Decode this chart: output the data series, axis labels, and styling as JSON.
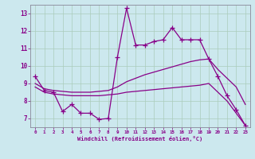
{
  "xlabel": "Windchill (Refroidissement éolien,°C)",
  "bg_color": "#cce8ee",
  "grid_color": "#aaccbb",
  "line_color": "#880088",
  "xlim": [
    -0.5,
    23.5
  ],
  "ylim": [
    6.5,
    13.5
  ],
  "yticks": [
    7,
    8,
    9,
    10,
    11,
    12,
    13
  ],
  "xticks": [
    0,
    1,
    2,
    3,
    4,
    5,
    6,
    7,
    8,
    9,
    10,
    11,
    12,
    13,
    14,
    15,
    16,
    17,
    18,
    19,
    20,
    21,
    22,
    23
  ],
  "line1_x": [
    0,
    1,
    2,
    3,
    4,
    5,
    6,
    7,
    8,
    9,
    10,
    11,
    12,
    13,
    14,
    15,
    16,
    17,
    18,
    19,
    20,
    21,
    22,
    23
  ],
  "line1_y": [
    9.4,
    8.6,
    8.5,
    7.4,
    7.8,
    7.3,
    7.3,
    6.95,
    7.0,
    10.5,
    13.3,
    11.2,
    11.2,
    11.4,
    11.5,
    12.2,
    11.5,
    11.5,
    11.5,
    10.4,
    9.4,
    8.3,
    7.5,
    6.6
  ],
  "line2_x": [
    0,
    1,
    2,
    3,
    4,
    5,
    6,
    7,
    8,
    9,
    10,
    11,
    12,
    13,
    14,
    15,
    16,
    17,
    18,
    19,
    20,
    21,
    22,
    23
  ],
  "line2_y": [
    9.0,
    8.7,
    8.6,
    8.55,
    8.5,
    8.5,
    8.5,
    8.55,
    8.6,
    8.8,
    9.1,
    9.3,
    9.5,
    9.65,
    9.8,
    9.95,
    10.1,
    10.25,
    10.35,
    10.4,
    9.8,
    9.3,
    8.8,
    7.8
  ],
  "line3_x": [
    0,
    1,
    2,
    3,
    4,
    5,
    6,
    7,
    8,
    9,
    10,
    11,
    12,
    13,
    14,
    15,
    16,
    17,
    18,
    19,
    20,
    21,
    22,
    23
  ],
  "line3_y": [
    8.8,
    8.5,
    8.4,
    8.35,
    8.3,
    8.3,
    8.3,
    8.3,
    8.35,
    8.4,
    8.5,
    8.55,
    8.6,
    8.65,
    8.7,
    8.75,
    8.8,
    8.85,
    8.9,
    9.0,
    8.5,
    8.0,
    7.3,
    6.6
  ]
}
